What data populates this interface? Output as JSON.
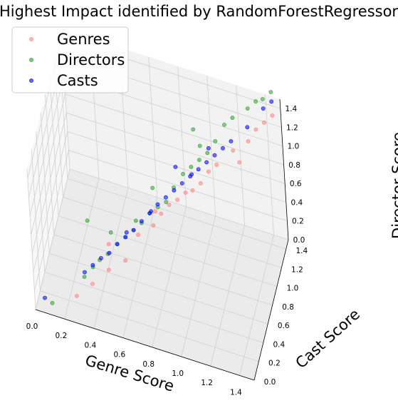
{
  "chart_data": {
    "type": "scatter",
    "projection": "3d",
    "title": "Highest Impact identified by RandomForestRegressor",
    "xlabel": "Genre Score",
    "ylabel": "Cast Score",
    "zlabel": "Director Score",
    "xlim": [
      0,
      1.5
    ],
    "ylim": [
      0,
      1.5
    ],
    "zlim": [
      0,
      1.5
    ],
    "xticks": [
      "0.0",
      "0.2",
      "0.4",
      "0.6",
      "0.8",
      "1.0",
      "1.2",
      "1.4"
    ],
    "yticks": [
      "0.0",
      "0.2",
      "0.4",
      "0.6",
      "0.8",
      "1.0",
      "1.2",
      "1.4"
    ],
    "zticks": [
      "0.0",
      "0.2",
      "0.4",
      "0.6",
      "0.8",
      "1.0",
      "1.2",
      "1.4"
    ],
    "grid": true,
    "legend": "top-left",
    "series": [
      {
        "name": "Genres",
        "color": "#ff8080",
        "points": [
          [
            0.25,
            0.22,
            0.05
          ],
          [
            0.35,
            0.3,
            0.15
          ],
          [
            0.45,
            0.4,
            0.25
          ],
          [
            0.55,
            0.5,
            0.3
          ],
          [
            0.4,
            0.7,
            0.2
          ],
          [
            0.6,
            0.75,
            0.35
          ],
          [
            0.7,
            0.8,
            0.45
          ],
          [
            0.75,
            0.85,
            0.55
          ],
          [
            0.8,
            0.9,
            0.62
          ],
          [
            0.85,
            0.95,
            0.65
          ],
          [
            0.7,
            0.9,
            0.5
          ],
          [
            0.9,
            1.0,
            0.7
          ],
          [
            1.0,
            1.05,
            0.8
          ],
          [
            1.05,
            1.1,
            0.9
          ],
          [
            1.1,
            1.15,
            0.95
          ],
          [
            1.2,
            1.25,
            1.05
          ],
          [
            1.3,
            1.3,
            1.15
          ],
          [
            1.35,
            1.35,
            1.25
          ],
          [
            1.4,
            1.4,
            1.3
          ],
          [
            1.45,
            1.45,
            1.35
          ],
          [
            1.25,
            1.2,
            1.0
          ],
          [
            0.95,
            1.0,
            0.75
          ]
        ]
      },
      {
        "name": "Directors",
        "color": "#2ca02c",
        "points": [
          [
            0.1,
            0.1,
            0.02
          ],
          [
            0.3,
            0.28,
            0.22
          ],
          [
            0.35,
            0.35,
            0.28
          ],
          [
            0.4,
            0.35,
            0.38
          ],
          [
            0.45,
            0.4,
            0.42
          ],
          [
            0.5,
            0.5,
            0.45
          ],
          [
            0.3,
            0.5,
            0.6
          ],
          [
            0.55,
            0.55,
            0.5
          ],
          [
            0.6,
            0.6,
            0.55
          ],
          [
            0.65,
            0.65,
            0.6
          ],
          [
            0.7,
            0.7,
            0.68
          ],
          [
            0.75,
            0.75,
            0.72
          ],
          [
            0.7,
            0.85,
            0.8
          ],
          [
            0.85,
            0.85,
            0.88
          ],
          [
            0.9,
            0.95,
            0.95
          ],
          [
            0.95,
            1.0,
            1.0
          ],
          [
            1.0,
            1.05,
            1.05
          ],
          [
            1.05,
            1.1,
            1.1
          ],
          [
            0.95,
            1.15,
            1.25
          ],
          [
            1.1,
            1.15,
            1.2
          ],
          [
            1.15,
            1.25,
            1.3
          ],
          [
            1.2,
            1.3,
            1.35
          ],
          [
            1.3,
            1.35,
            1.45
          ],
          [
            1.4,
            1.4,
            1.55
          ],
          [
            1.45,
            1.45,
            1.6
          ],
          [
            1.35,
            1.4,
            1.5
          ],
          [
            0.6,
            0.7,
            0.55
          ],
          [
            0.45,
            0.55,
            0.5
          ],
          [
            0.8,
            0.8,
            0.75
          ],
          [
            1.0,
            1.1,
            1.15
          ]
        ]
      },
      {
        "name": "Casts",
        "color": "#0000ff",
        "points": [
          [
            0.05,
            0.1,
            0.05
          ],
          [
            0.3,
            0.3,
            0.25
          ],
          [
            0.35,
            0.35,
            0.3
          ],
          [
            0.4,
            0.4,
            0.35
          ],
          [
            0.45,
            0.45,
            0.38
          ],
          [
            0.5,
            0.5,
            0.45
          ],
          [
            0.55,
            0.55,
            0.5
          ],
          [
            0.6,
            0.6,
            0.55
          ],
          [
            0.65,
            0.65,
            0.62
          ],
          [
            0.7,
            0.7,
            0.68
          ],
          [
            0.75,
            0.75,
            0.75
          ],
          [
            0.8,
            0.8,
            0.8
          ],
          [
            0.85,
            0.85,
            0.85
          ],
          [
            0.9,
            0.9,
            0.9
          ],
          [
            0.95,
            0.95,
            0.95
          ],
          [
            1.0,
            1.0,
            1.0
          ],
          [
            1.05,
            1.05,
            1.05
          ],
          [
            1.1,
            1.1,
            1.1
          ],
          [
            1.15,
            1.15,
            1.15
          ],
          [
            1.2,
            1.2,
            1.2
          ],
          [
            1.3,
            1.3,
            1.3
          ],
          [
            1.4,
            1.4,
            1.45
          ],
          [
            1.45,
            1.45,
            1.5
          ],
          [
            0.85,
            0.95,
            1.0
          ],
          [
            0.95,
            1.0,
            0.92
          ],
          [
            1.05,
            1.15,
            1.1
          ],
          [
            0.7,
            0.75,
            0.65
          ],
          [
            0.55,
            0.6,
            0.5
          ]
        ]
      }
    ]
  }
}
